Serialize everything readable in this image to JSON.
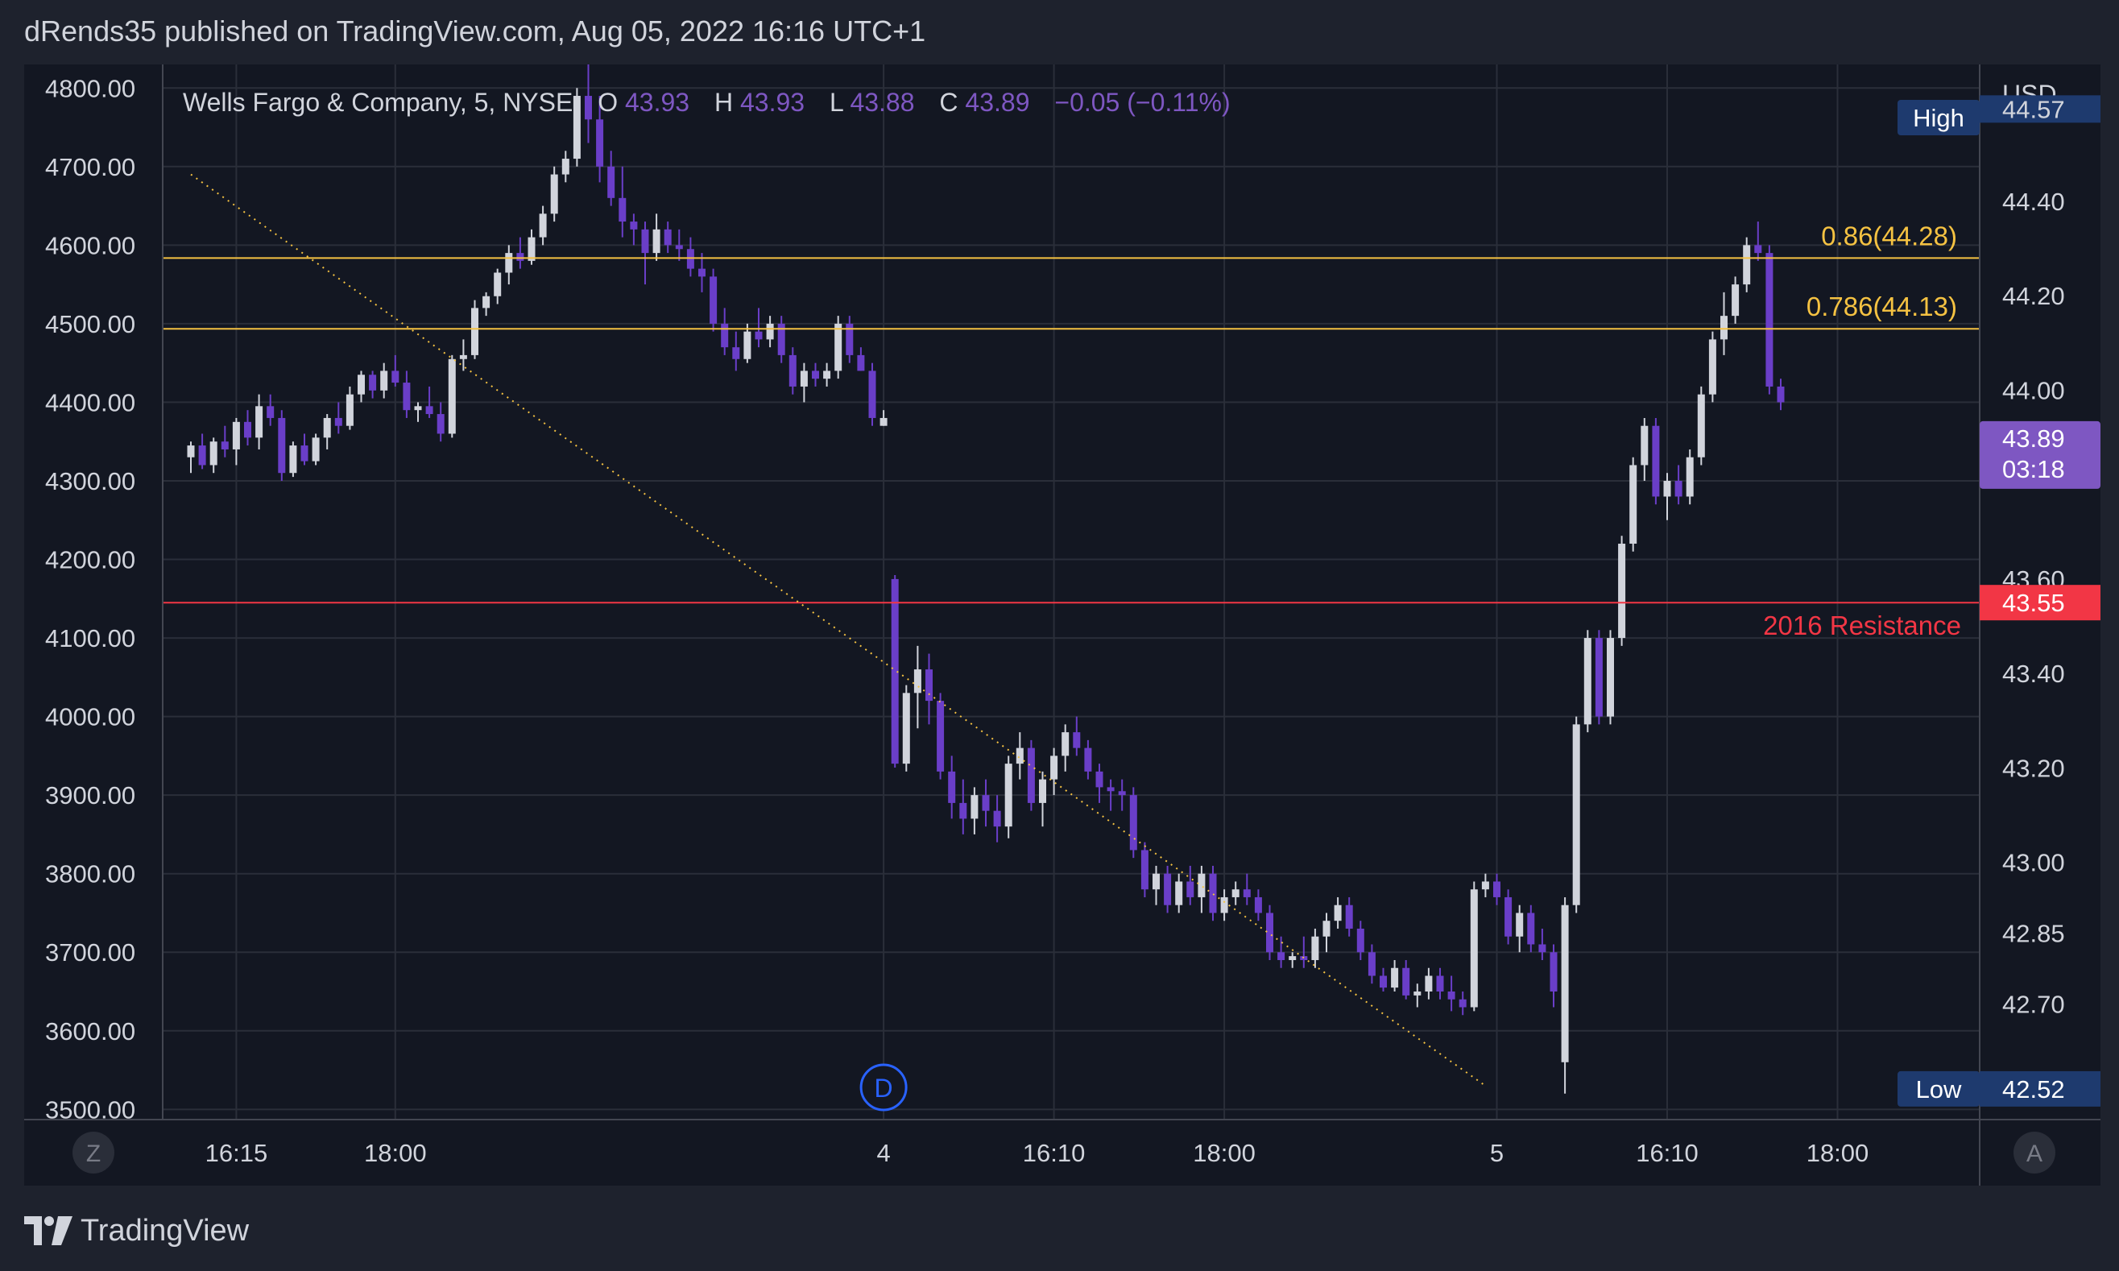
{
  "header": {
    "published_line": "dRends35 published on TradingView.com, Aug 05, 2022 16:16 UTC+1"
  },
  "footer": {
    "brand": "TradingView",
    "logo_icon": "tradingview-logo-icon"
  },
  "colors": {
    "background": "#131722",
    "grid": "#2a2e39",
    "up_candle": "#d1d4dc",
    "down_candle": "#6a3ec8",
    "fib_line": "#f5c242",
    "resistance": "#f23645",
    "trendline": "#f5c242",
    "price_tag": "#7e57c2",
    "marker_blue": "#2962ff"
  },
  "chart_data": {
    "type": "candlestick",
    "instrument": {
      "name": "Wells Fargo & Company",
      "interval": "5",
      "exchange": "NYSE",
      "legend_text": "Wells Fargo & Company, 5, NYSE",
      "o_label": "O",
      "o_value": "43.93",
      "h_label": "H",
      "h_value": "43.93",
      "l_label": "L",
      "l_value": "43.88",
      "c_label": "C",
      "c_value": "43.89",
      "change_text": "−0.05 (−0.11%)"
    },
    "currency": "USD",
    "x_ticks": [
      "16:15",
      "18:00",
      "4",
      "16:10",
      "18:00",
      "5",
      "16:10",
      "18:00"
    ],
    "x_tick_index": [
      4,
      18,
      61,
      76,
      91,
      115,
      130,
      145
    ],
    "left_axis": {
      "ticks": [
        "4800.00",
        "4700.00",
        "4600.00",
        "4500.00",
        "4400.00",
        "4300.00",
        "4200.00",
        "4100.00",
        "4000.00",
        "3900.00",
        "3800.00",
        "3700.00",
        "3600.00",
        "3500.00"
      ],
      "range": [
        3487,
        4830
      ]
    },
    "right_axis": {
      "ticks": [
        "44.40",
        "44.20",
        "44.00",
        "43.60",
        "43.40",
        "43.20",
        "43.00",
        "42.85",
        "42.70"
      ],
      "tick_values": [
        44.4,
        44.2,
        44.0,
        43.6,
        43.4,
        43.2,
        43.0,
        42.85,
        42.7
      ],
      "range": [
        42.455,
        44.69
      ]
    },
    "current_price": {
      "price": "43.89",
      "countdown": "03:18",
      "value": 43.89
    },
    "high_marker": {
      "label": "High",
      "value_partial": "44.57",
      "value": 44.57
    },
    "low_marker": {
      "label": "Low",
      "value": "42.52",
      "price": 42.52
    },
    "fib_levels": [
      {
        "label": "0.86(44.28)",
        "value": 44.28
      },
      {
        "label": "0.786(44.13)",
        "value": 44.13
      }
    ],
    "resistance": {
      "label": "2016 Resistance",
      "value": "43.55",
      "price": 43.55
    },
    "trendline": {
      "start_index": 0,
      "start_value": 4690,
      "end_index": 114,
      "end_value": 3530
    },
    "session_marker": {
      "label": "D",
      "index": 61
    },
    "axis_buttons": {
      "left": "Z",
      "right": "A"
    },
    "candles": [
      [
        4330,
        4350,
        4310,
        4345
      ],
      [
        4345,
        4360,
        4315,
        4320
      ],
      [
        4320,
        4355,
        4310,
        4350
      ],
      [
        4350,
        4370,
        4330,
        4340
      ],
      [
        4340,
        4380,
        4320,
        4375
      ],
      [
        4375,
        4390,
        4345,
        4355
      ],
      [
        4355,
        4410,
        4340,
        4395
      ],
      [
        4395,
        4410,
        4370,
        4380
      ],
      [
        4380,
        4390,
        4300,
        4310
      ],
      [
        4310,
        4350,
        4305,
        4345
      ],
      [
        4345,
        4360,
        4320,
        4325
      ],
      [
        4325,
        4360,
        4320,
        4355
      ],
      [
        4355,
        4385,
        4340,
        4380
      ],
      [
        4380,
        4400,
        4360,
        4370
      ],
      [
        4370,
        4420,
        4365,
        4410
      ],
      [
        4410,
        4440,
        4400,
        4435
      ],
      [
        4435,
        4440,
        4405,
        4415
      ],
      [
        4415,
        4450,
        4405,
        4440
      ],
      [
        4440,
        4460,
        4420,
        4425
      ],
      [
        4425,
        4440,
        4380,
        4390
      ],
      [
        4390,
        4400,
        4375,
        4395
      ],
      [
        4395,
        4420,
        4380,
        4385
      ],
      [
        4385,
        4400,
        4350,
        4360
      ],
      [
        4360,
        4460,
        4355,
        4455
      ],
      [
        4455,
        4480,
        4440,
        4460
      ],
      [
        4460,
        4530,
        4455,
        4520
      ],
      [
        4520,
        4540,
        4510,
        4535
      ],
      [
        4535,
        4570,
        4525,
        4565
      ],
      [
        4565,
        4600,
        4550,
        4590
      ],
      [
        4590,
        4610,
        4570,
        4580
      ],
      [
        4580,
        4620,
        4575,
        4610
      ],
      [
        4610,
        4650,
        4600,
        4640
      ],
      [
        4640,
        4700,
        4630,
        4690
      ],
      [
        4690,
        4720,
        4680,
        4710
      ],
      [
        4710,
        4800,
        4700,
        4790
      ],
      [
        4790,
        4830,
        4730,
        4760
      ],
      [
        4760,
        4790,
        4680,
        4700
      ],
      [
        4700,
        4720,
        4650,
        4660
      ],
      [
        4660,
        4700,
        4610,
        4630
      ],
      [
        4630,
        4640,
        4600,
        4620
      ],
      [
        4620,
        4630,
        4550,
        4590
      ],
      [
        4590,
        4640,
        4580,
        4620
      ],
      [
        4620,
        4630,
        4590,
        4600
      ],
      [
        4600,
        4620,
        4580,
        4595
      ],
      [
        4595,
        4610,
        4560,
        4570
      ],
      [
        4570,
        4590,
        4540,
        4560
      ],
      [
        4560,
        4570,
        4490,
        4500
      ],
      [
        4500,
        4520,
        4460,
        4470
      ],
      [
        4470,
        4490,
        4440,
        4455
      ],
      [
        4455,
        4500,
        4450,
        4490
      ],
      [
        4490,
        4520,
        4470,
        4480
      ],
      [
        4480,
        4510,
        4470,
        4500
      ],
      [
        4500,
        4510,
        4450,
        4460
      ],
      [
        4460,
        4470,
        4410,
        4420
      ],
      [
        4420,
        4450,
        4400,
        4440
      ],
      [
        4440,
        4450,
        4420,
        4430
      ],
      [
        4430,
        4450,
        4420,
        4440
      ],
      [
        4440,
        4510,
        4430,
        4500
      ],
      [
        4500,
        4510,
        4450,
        4460
      ],
      [
        4460,
        4470,
        4440,
        4440
      ],
      [
        4440,
        4450,
        4370,
        4380
      ],
      [
        4370,
        4390,
        4370,
        4380
      ],
      [
        4175,
        4180,
        3935,
        3940
      ],
      [
        3940,
        4040,
        3930,
        4030
      ],
      [
        4030,
        4090,
        3985,
        4060
      ],
      [
        4060,
        4080,
        3990,
        4020
      ],
      [
        4020,
        4030,
        3920,
        3930
      ],
      [
        3930,
        3950,
        3870,
        3890
      ],
      [
        3890,
        3920,
        3850,
        3870
      ],
      [
        3870,
        3910,
        3850,
        3900
      ],
      [
        3900,
        3920,
        3860,
        3880
      ],
      [
        3880,
        3900,
        3840,
        3860
      ],
      [
        3860,
        3950,
        3845,
        3940
      ],
      [
        3940,
        3980,
        3920,
        3960
      ],
      [
        3960,
        3970,
        3880,
        3890
      ],
      [
        3890,
        3930,
        3860,
        3920
      ],
      [
        3920,
        3960,
        3900,
        3950
      ],
      [
        3950,
        3990,
        3930,
        3980
      ],
      [
        3980,
        4000,
        3950,
        3960
      ],
      [
        3960,
        3970,
        3920,
        3930
      ],
      [
        3930,
        3940,
        3890,
        3910
      ],
      [
        3910,
        3920,
        3880,
        3905
      ],
      [
        3905,
        3920,
        3880,
        3900
      ],
      [
        3900,
        3910,
        3820,
        3830
      ],
      [
        3830,
        3840,
        3770,
        3780
      ],
      [
        3780,
        3810,
        3760,
        3800
      ],
      [
        3800,
        3810,
        3750,
        3760
      ],
      [
        3760,
        3800,
        3750,
        3790
      ],
      [
        3790,
        3810,
        3760,
        3770
      ],
      [
        3770,
        3810,
        3750,
        3800
      ],
      [
        3800,
        3810,
        3740,
        3750
      ],
      [
        3750,
        3780,
        3740,
        3770
      ],
      [
        3770,
        3790,
        3760,
        3780
      ],
      [
        3780,
        3800,
        3760,
        3770
      ],
      [
        3770,
        3780,
        3740,
        3750
      ],
      [
        3750,
        3760,
        3690,
        3700
      ],
      [
        3700,
        3720,
        3680,
        3690
      ],
      [
        3690,
        3700,
        3680,
        3695
      ],
      [
        3695,
        3720,
        3680,
        3690
      ],
      [
        3690,
        3730,
        3680,
        3720
      ],
      [
        3720,
        3750,
        3700,
        3740
      ],
      [
        3740,
        3770,
        3730,
        3760
      ],
      [
        3760,
        3770,
        3720,
        3730
      ],
      [
        3730,
        3740,
        3690,
        3700
      ],
      [
        3700,
        3710,
        3660,
        3670
      ],
      [
        3670,
        3680,
        3650,
        3655
      ],
      [
        3655,
        3690,
        3650,
        3680
      ],
      [
        3680,
        3690,
        3640,
        3645
      ],
      [
        3645,
        3660,
        3630,
        3650
      ],
      [
        3650,
        3680,
        3640,
        3670
      ],
      [
        3670,
        3680,
        3640,
        3650
      ],
      [
        3650,
        3670,
        3625,
        3640
      ],
      [
        3640,
        3650,
        3620,
        3630
      ],
      [
        3630,
        3790,
        3625,
        3780
      ],
      [
        3780,
        3800,
        3770,
        3790
      ],
      [
        3790,
        3800,
        3760,
        3770
      ],
      [
        3770,
        3780,
        3710,
        3720
      ],
      [
        3720,
        3760,
        3700,
        3750
      ],
      [
        3750,
        3760,
        3700,
        3710
      ],
      [
        3710,
        3730,
        3690,
        3700
      ],
      [
        3700,
        3710,
        3630,
        3650
      ],
      [
        3560,
        3770,
        3520,
        3760
      ],
      [
        3760,
        4000,
        3750,
        3990
      ],
      [
        3990,
        4110,
        3980,
        4100
      ],
      [
        4100,
        4110,
        3990,
        4000
      ],
      [
        4000,
        4110,
        3990,
        4100
      ],
      [
        4100,
        4230,
        4090,
        4220
      ],
      [
        4220,
        4330,
        4210,
        4320
      ],
      [
        4320,
        4380,
        4300,
        4370
      ],
      [
        4370,
        4380,
        4270,
        4280
      ],
      [
        4280,
        4310,
        4250,
        4300
      ],
      [
        4300,
        4320,
        4270,
        4280
      ],
      [
        4280,
        4340,
        4270,
        4330
      ],
      [
        4330,
        4420,
        4320,
        4410
      ],
      [
        4410,
        4490,
        4400,
        4480
      ],
      [
        4480,
        4540,
        4460,
        4510
      ],
      [
        4510,
        4560,
        4500,
        4550
      ],
      [
        4550,
        4610,
        4540,
        4600
      ],
      [
        4600,
        4630,
        4580,
        4590
      ],
      [
        4590,
        4600,
        4410,
        4420
      ],
      [
        4420,
        4430,
        4390,
        4400
      ]
    ]
  }
}
